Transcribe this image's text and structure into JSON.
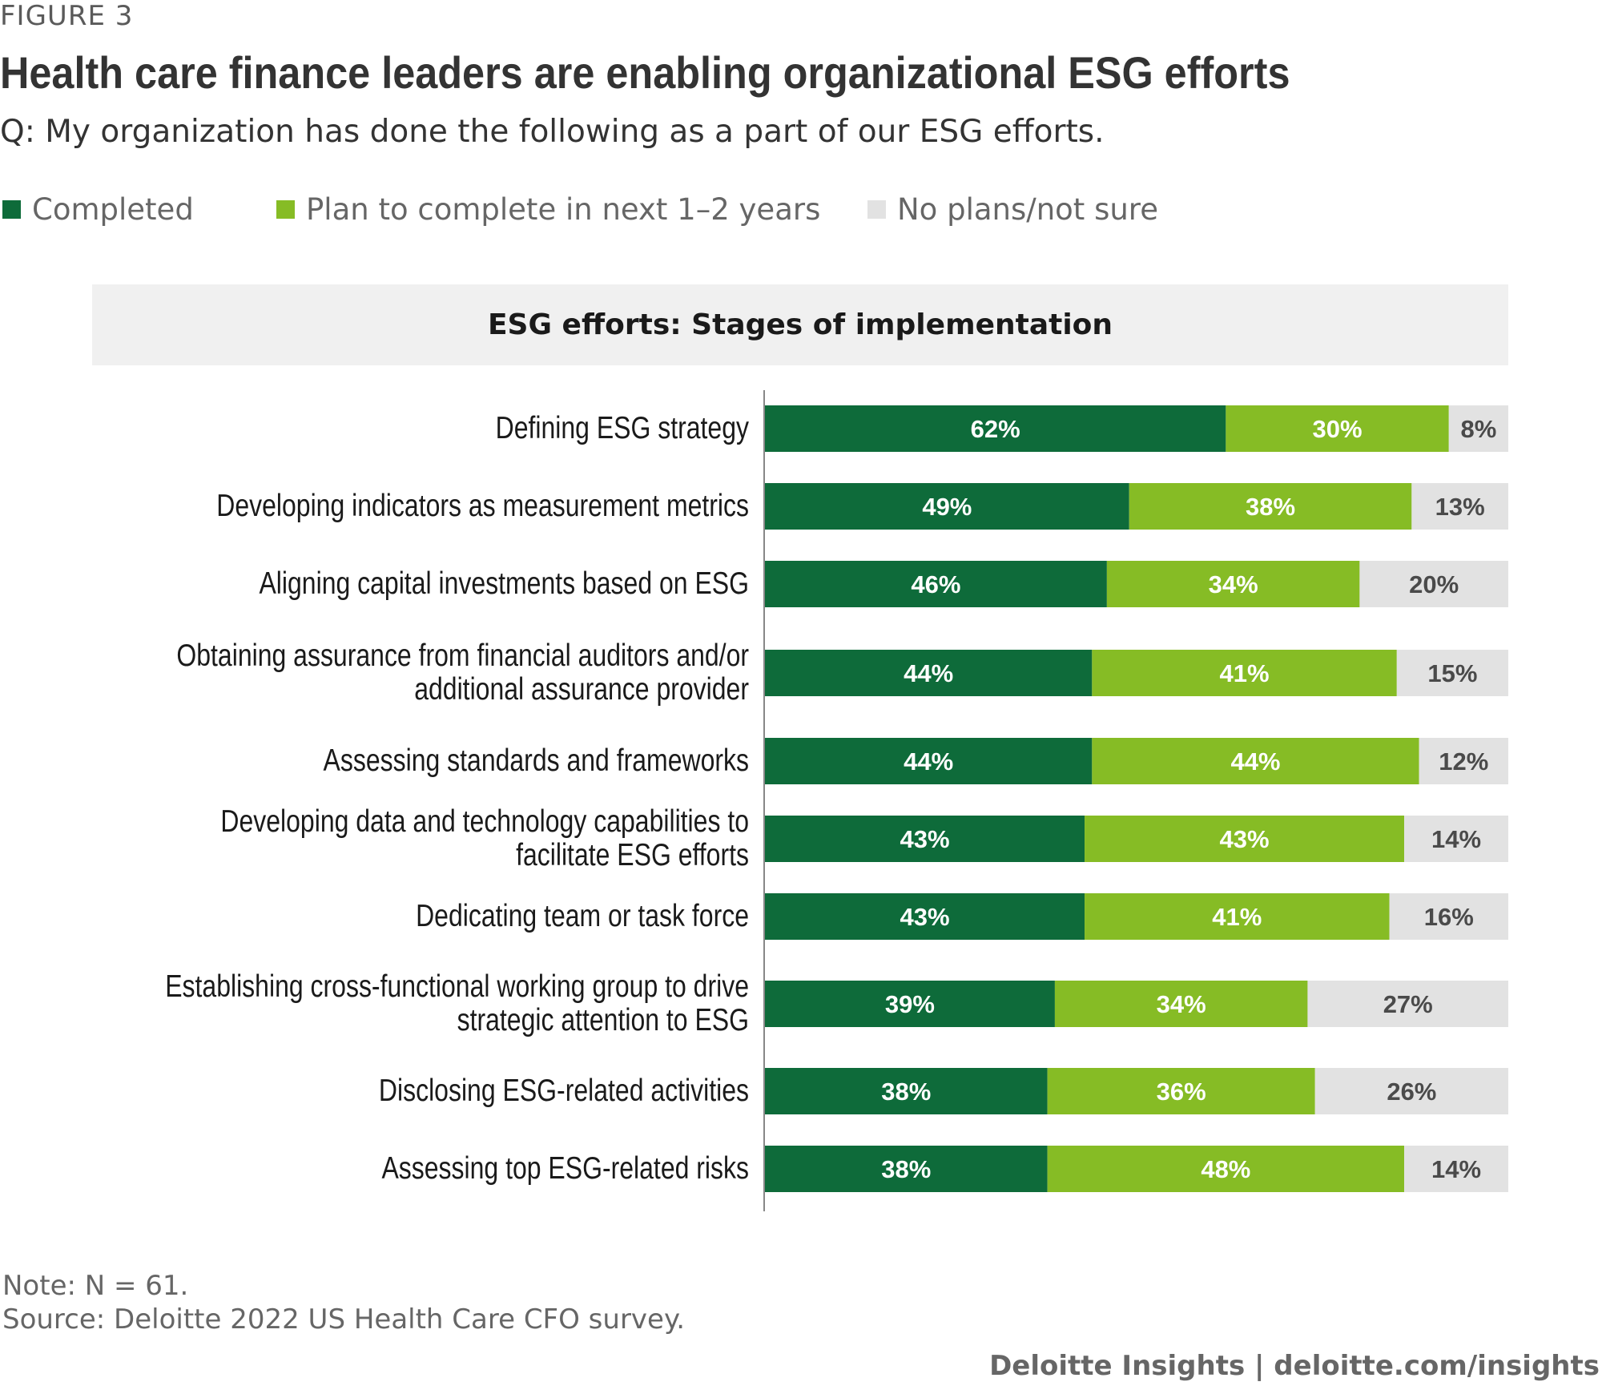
{
  "figure_label": "FIGURE 3",
  "title": "Health care finance leaders are enabling organizational ESG efforts",
  "subtitle": "Q: My organization has done the following as a part of our ESG efforts.",
  "legend": [
    {
      "label": "Completed",
      "color": "#0e6b3a"
    },
    {
      "label": "Plan to complete in next 1–2 years",
      "color": "#86bc25"
    },
    {
      "label": "No plans/not sure",
      "color": "#e2e2e2"
    }
  ],
  "panel_title": "ESG efforts: Stages of implementation",
  "chart_data": {
    "type": "bar",
    "orientation": "horizontal",
    "stacked": true,
    "percent": true,
    "xlim": [
      0,
      100
    ],
    "categories": [
      "Defining ESG strategy",
      "Developing indicators as measurement metrics",
      "Aligning capital investments based on ESG",
      "Obtaining assurance from financial auditors and/or additional assurance provider",
      "Assessing standards and frameworks",
      "Developing data and technology capabilities to facilitate ESG efforts",
      "Dedicating team or task force",
      "Establishing cross-functional working group to drive strategic attention to ESG",
      "Disclosing ESG-related activities",
      "Assessing top ESG-related risks"
    ],
    "series": [
      {
        "name": "Completed",
        "color": "#0e6b3a",
        "label_color": "#ffffff",
        "values": [
          62,
          49,
          46,
          44,
          44,
          43,
          43,
          39,
          38,
          38
        ]
      },
      {
        "name": "Plan to complete in next 1–2 years",
        "color": "#86bc25",
        "label_color": "#ffffff",
        "values": [
          30,
          38,
          34,
          41,
          44,
          43,
          41,
          34,
          36,
          48
        ]
      },
      {
        "name": "No plans/not sure",
        "color": "#e2e2e2",
        "label_color": "#4a4a4a",
        "values": [
          8,
          13,
          20,
          15,
          12,
          14,
          16,
          27,
          26,
          14
        ]
      }
    ],
    "value_suffix": "%",
    "grid": false,
    "legend_position": "top-left"
  },
  "note": "Note: N = 61.",
  "source": "Source: Deloitte 2022 US Health Care CFO survey.",
  "footer": "Deloitte Insights | deloitte.com/insights"
}
